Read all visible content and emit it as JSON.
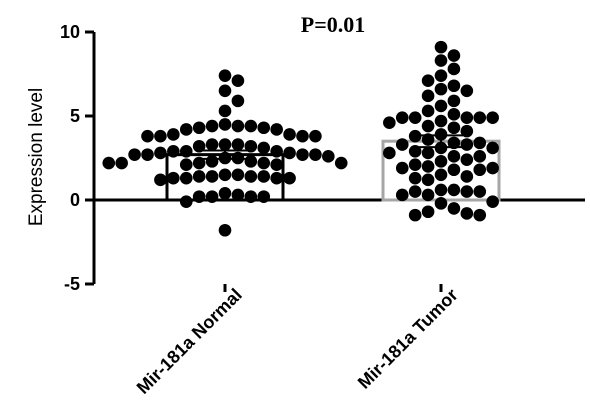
{
  "chart_data": {
    "type": "bar",
    "title": "P=0.01",
    "xlabel": "",
    "ylabel": "Expression level",
    "ylim": [
      -5,
      10
    ],
    "yticks": [
      "10",
      "5",
      "0",
      "-5"
    ],
    "categories": [
      "Mir-181a Normal",
      "Mir-181a Tumor"
    ],
    "series": [
      {
        "values": [
          2.7,
          3.5
        ],
        "error": [
          0.25,
          0.35
        ],
        "colors": [
          "#000000",
          "#a6a6a6"
        ]
      }
    ],
    "points": [
      [
        7.1,
        7.4,
        6.5,
        5.9,
        5.3,
        4.4,
        4.3,
        4.2,
        4.3,
        4.4,
        4.5,
        4.2,
        4.4,
        3.8,
        3.8,
        3.9,
        3.8,
        3.9,
        3.8,
        3.2,
        3.3,
        3.3,
        3.3,
        3.2,
        3.1,
        2.9,
        2.9,
        2.7,
        2.7,
        2.8,
        2.5,
        2.7,
        2.7,
        2.8,
        2.9,
        2.6,
        2.5,
        2.2,
        2.3,
        2.2,
        2.2,
        2.3,
        2.1,
        2.2,
        2.2,
        2.1,
        1.4,
        1.4,
        1.4,
        1.3,
        1.3,
        1.4,
        1.3,
        1.3,
        1.2,
        1.5,
        1.5,
        0.4,
        0.2,
        0.2,
        0.2,
        0.3,
        0.2,
        -0.1,
        -1.8
      ],
      [
        9.1,
        8.6,
        8.3,
        7.8,
        7.4,
        7.1,
        6.8,
        6.6,
        6.5,
        6.2,
        5.9,
        5.6,
        5.3,
        5.1,
        4.9,
        4.7,
        4.9,
        4.9,
        4.9,
        4.9,
        4.6,
        4.4,
        4.3,
        4.1,
        3.9,
        3.8,
        3.6,
        3.4,
        3.4,
        3.3,
        3.3,
        3.1,
        3.1,
        2.9,
        2.8,
        2.8,
        2.6,
        2.6,
        2.4,
        2.3,
        2.1,
        1.9,
        2.0,
        1.9,
        1.8,
        1.8,
        1.5,
        1.4,
        1.3,
        1.2,
        0.6,
        0.6,
        0.5,
        0.5,
        0.5,
        0.3,
        0.3,
        -0.1,
        -0.2,
        -0.5,
        -0.8,
        -0.9,
        -0.7,
        -0.9
      ]
    ]
  }
}
